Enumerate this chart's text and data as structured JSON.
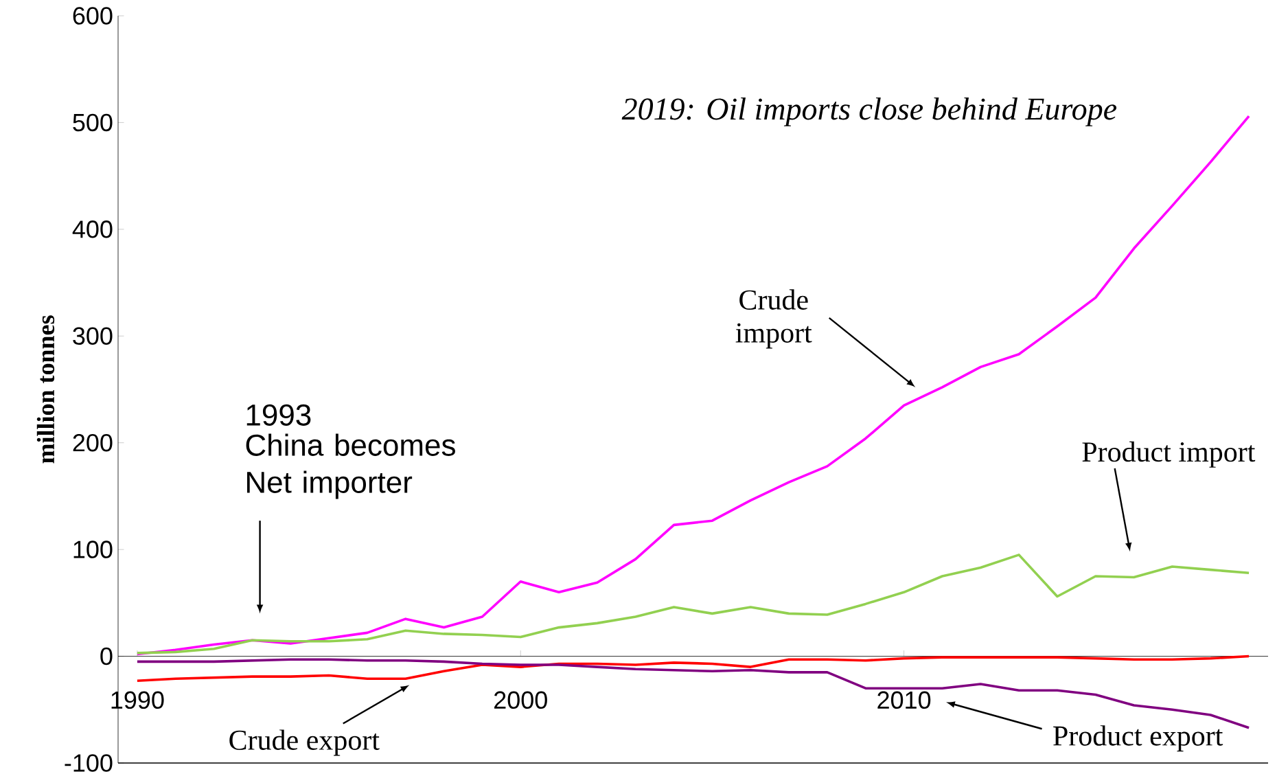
{
  "chart_data": {
    "type": "line",
    "ylabel": "million tonnes",
    "x": [
      1990,
      1991,
      1992,
      1993,
      1994,
      1995,
      1996,
      1997,
      1998,
      1999,
      2000,
      2001,
      2002,
      2003,
      2004,
      2005,
      2006,
      2007,
      2008,
      2009,
      2010,
      2011,
      2012,
      2013,
      2014,
      2015,
      2016,
      2017,
      2018,
      2019
    ],
    "series": [
      {
        "color": "#ff00ff",
        "values": [
          2,
          6,
          11,
          15,
          12,
          17,
          22,
          35,
          27,
          37,
          70,
          60,
          69,
          91,
          123,
          127,
          146,
          163,
          178,
          204,
          235,
          252,
          271,
          283,
          309,
          336,
          382,
          422,
          463,
          506
        ]
      },
      {
        "color": "#92d050",
        "values": [
          3,
          4,
          7,
          15,
          14,
          14,
          16,
          24,
          21,
          20,
          18,
          27,
          31,
          37,
          46,
          40,
          46,
          40,
          39,
          49,
          60,
          75,
          83,
          95,
          56,
          75,
          74,
          84,
          81,
          78
        ]
      },
      {
        "color": "#ff0000",
        "values": [
          -23,
          -21,
          -20,
          -19,
          -19,
          -18,
          -21,
          -21,
          -14,
          -8,
          -10,
          -7,
          -7,
          -8,
          -6,
          -7,
          -10,
          -3,
          -3,
          -4,
          -2,
          -1,
          -1,
          -1,
          -1,
          -2,
          -3,
          -3,
          -2,
          0
        ]
      },
      {
        "color": "#800080",
        "values": [
          -5,
          -5,
          -5,
          -4,
          -3,
          -3,
          -4,
          -4,
          -5,
          -7,
          -8,
          -8,
          -10,
          -12,
          -13,
          -14,
          -13,
          -15,
          -15,
          -30,
          -30,
          -30,
          -26,
          -32,
          -32,
          -36,
          -46,
          -50,
          -55,
          -67
        ]
      }
    ],
    "xlim": [
      1989.5,
      2019.5
    ],
    "xticks": [
      1990,
      2000,
      2010
    ],
    "ylim": [
      -100,
      600
    ],
    "yticks": [
      -100,
      0,
      100,
      200,
      300,
      400,
      500,
      600
    ],
    "annotations": [
      "2019: Oil imports close behind Europe",
      "1993",
      "China becomes Net importer",
      "Crude import",
      "Product import",
      "Crude export",
      "Product export"
    ]
  }
}
